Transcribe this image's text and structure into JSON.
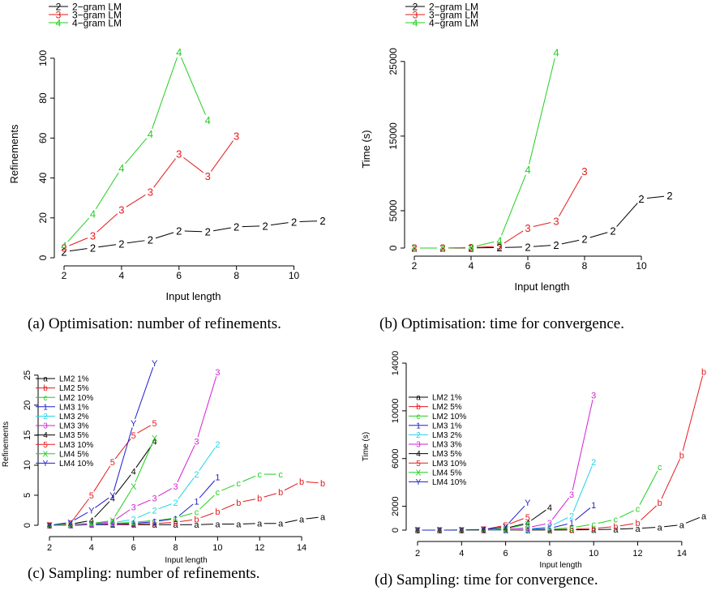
{
  "chart_data": [
    {
      "id": "a",
      "type": "line",
      "caption": "(a) Optimisation: number of refinements.",
      "xlabel": "Input length",
      "ylabel": "Refinements",
      "xlim": [
        2,
        11
      ],
      "ylim": [
        0,
        104
      ],
      "xticks": [
        2,
        4,
        6,
        8,
        10
      ],
      "yticks": [
        0,
        20,
        40,
        60,
        80,
        100
      ],
      "legend_position": "top-left",
      "series": [
        {
          "name": "2−gram LM",
          "marker": "2",
          "color": "#000000",
          "x": [
            2,
            3,
            4,
            5,
            6,
            7,
            8,
            9,
            10,
            11
          ],
          "y": [
            3,
            5,
            7,
            9,
            13.5,
            13,
            15.5,
            16,
            18,
            18.5
          ]
        },
        {
          "name": "3−gram LM",
          "marker": "3",
          "color": "#e41a1c",
          "x": [
            2,
            3,
            4,
            5,
            6,
            7,
            8
          ],
          "y": [
            5,
            11,
            24,
            33,
            52,
            41,
            61
          ]
        },
        {
          "name": "4−gram LM",
          "marker": "4",
          "color": "#1fcf1f",
          "x": [
            2,
            3,
            4,
            5,
            6,
            7
          ],
          "y": [
            6,
            22,
            45,
            62,
            103,
            69
          ]
        }
      ]
    },
    {
      "id": "b",
      "type": "line",
      "caption": "(b) Optimisation: time for convergence.",
      "xlabel": "Input length",
      "ylabel": "Time (s)",
      "xlim": [
        2,
        11
      ],
      "ylim": [
        0,
        26500
      ],
      "xticks": [
        2,
        4,
        6,
        8,
        10
      ],
      "yticks": [
        0,
        5000,
        15000,
        25000
      ],
      "legend_position": "top-left",
      "series": [
        {
          "name": "2−gram LM",
          "marker": "2",
          "color": "#000000",
          "x": [
            2,
            3,
            4,
            5,
            6,
            7,
            8,
            9,
            10,
            11
          ],
          "y": [
            0,
            0,
            20,
            60,
            150,
            400,
            1200,
            2300,
            6600,
            7000
          ]
        },
        {
          "name": "3−gram LM",
          "marker": "3",
          "color": "#e41a1c",
          "x": [
            2,
            3,
            4,
            5,
            6,
            7,
            8
          ],
          "y": [
            0,
            0,
            50,
            250,
            2700,
            3600,
            10300
          ]
        },
        {
          "name": "4−gram LM",
          "marker": "4",
          "color": "#1fcf1f",
          "x": [
            2,
            3,
            4,
            5,
            6,
            7
          ],
          "y": [
            0,
            0,
            100,
            1000,
            10500,
            26200
          ]
        }
      ]
    },
    {
      "id": "c",
      "type": "line",
      "caption": "(c) Sampling: number of refinements.",
      "xlabel": "Input length",
      "ylabel": "Refinements",
      "xlim": [
        2,
        15
      ],
      "ylim": [
        0,
        27
      ],
      "xticks": [
        2,
        4,
        6,
        8,
        10,
        12,
        14
      ],
      "yticks": [
        0,
        5,
        10,
        15,
        20,
        25
      ],
      "legend_position": "top-left",
      "series": [
        {
          "name": "LM2 1%",
          "marker": "a",
          "color": "#000000",
          "x": [
            2,
            3,
            4,
            5,
            6,
            7,
            8,
            9,
            10,
            11,
            12,
            13,
            14,
            15
          ],
          "y": [
            0,
            0,
            0.1,
            0.1,
            0.1,
            0.1,
            0.1,
            0.1,
            0.2,
            0.2,
            0.3,
            0.3,
            1,
            1.4
          ]
        },
        {
          "name": "LM2 5%",
          "marker": "b",
          "color": "#e41a1c",
          "x": [
            2,
            3,
            4,
            5,
            6,
            7,
            8,
            9,
            10,
            11,
            12,
            13,
            14,
            15
          ],
          "y": [
            0,
            0,
            0.1,
            0.1,
            0.2,
            0.3,
            0.5,
            1,
            2.3,
            3.8,
            4.5,
            5.5,
            7.3,
            7
          ]
        },
        {
          "name": "LM2 10%",
          "marker": "c",
          "color": "#1fcf1f",
          "x": [
            2,
            3,
            4,
            5,
            6,
            7,
            8,
            9,
            10,
            11,
            12,
            13
          ],
          "y": [
            0,
            0,
            0.2,
            0.3,
            0.5,
            0.8,
            1.2,
            2.2,
            5.5,
            7,
            8.5,
            8.5
          ]
        },
        {
          "name": "LM3 1%",
          "marker": "1",
          "color": "#1f1fcf",
          "x": [
            2,
            3,
            4,
            5,
            6,
            7,
            8,
            9,
            10
          ],
          "y": [
            0,
            0,
            0.1,
            0.2,
            0.3,
            0.6,
            1.1,
            4,
            8
          ]
        },
        {
          "name": "LM3 2%",
          "marker": "2",
          "color": "#22d3e6",
          "x": [
            2,
            3,
            4,
            5,
            6,
            7,
            8,
            9,
            10
          ],
          "y": [
            0,
            0,
            0.2,
            0.4,
            1,
            2.5,
            3.8,
            8.5,
            13.5
          ]
        },
        {
          "name": "LM3 3%",
          "marker": "3",
          "color": "#d31fd3",
          "x": [
            2,
            3,
            4,
            5,
            6,
            7,
            8,
            9,
            10
          ],
          "y": [
            0,
            0,
            0.2,
            0.6,
            3,
            4.5,
            6.5,
            14,
            25.5
          ]
        },
        {
          "name": "LM3 5%",
          "marker": "4",
          "color": "#000000",
          "x": [
            2,
            3,
            4,
            5,
            6,
            7
          ],
          "y": [
            0,
            0.2,
            0.8,
            4.5,
            9,
            14
          ]
        },
        {
          "name": "LM3 10%",
          "marker": "5",
          "color": "#e41a1c",
          "x": [
            2,
            3,
            4,
            5,
            6,
            7
          ],
          "y": [
            0,
            0.3,
            5,
            10.5,
            15,
            17
          ]
        },
        {
          "name": "LM4 5%",
          "marker": "X",
          "color": "#1fcf1f",
          "x": [
            2,
            3,
            4,
            5,
            6,
            7
          ],
          "y": [
            0,
            0.2,
            0.3,
            0.8,
            6.5,
            14.5
          ]
        },
        {
          "name": "LM4 10%",
          "marker": "Y",
          "color": "#1f1fcf",
          "x": [
            2,
            3,
            4,
            5,
            6,
            7
          ],
          "y": [
            0,
            0.5,
            2.5,
            5,
            17,
            27
          ]
        }
      ]
    },
    {
      "id": "d",
      "type": "line",
      "caption": "(d) Sampling: time for convergence.",
      "xlabel": "Input length",
      "ylabel": "Time (s)",
      "xlim": [
        2,
        15
      ],
      "ylim": [
        0,
        14000
      ],
      "xticks": [
        2,
        4,
        6,
        8,
        10,
        12,
        14
      ],
      "yticks": [
        0,
        2000,
        6000,
        10000,
        14000
      ],
      "legend_position": "top-left",
      "series": [
        {
          "name": "LM2 1%",
          "marker": "a",
          "color": "#000000",
          "x": [
            2,
            3,
            4,
            5,
            6,
            7,
            8,
            9,
            10,
            11,
            12,
            13,
            14,
            15
          ],
          "y": [
            0,
            0,
            0,
            0,
            0,
            5,
            10,
            20,
            40,
            80,
            150,
            250,
            450,
            1200
          ]
        },
        {
          "name": "LM2 5%",
          "marker": "b",
          "color": "#e41a1c",
          "x": [
            2,
            3,
            4,
            5,
            6,
            7,
            8,
            9,
            10,
            11,
            12,
            13,
            14,
            15
          ],
          "y": [
            0,
            0,
            0,
            0,
            5,
            20,
            40,
            80,
            150,
            300,
            600,
            2300,
            6300,
            13300
          ]
        },
        {
          "name": "LM2 10%",
          "marker": "c",
          "color": "#1fcf1f",
          "x": [
            2,
            3,
            4,
            5,
            6,
            7,
            8,
            9,
            10,
            11,
            12,
            13
          ],
          "y": [
            0,
            0,
            0,
            0,
            10,
            40,
            80,
            200,
            500,
            900,
            1800,
            5300
          ]
        },
        {
          "name": "LM3 1%",
          "marker": "1",
          "color": "#1f1fcf",
          "x": [
            2,
            3,
            4,
            5,
            6,
            7,
            8,
            9,
            10
          ],
          "y": [
            0,
            0,
            0,
            5,
            20,
            60,
            150,
            600,
            2100
          ]
        },
        {
          "name": "LM3 2%",
          "marker": "2",
          "color": "#22d3e6",
          "x": [
            2,
            3,
            4,
            5,
            6,
            7,
            8,
            9,
            10
          ],
          "y": [
            0,
            0,
            0,
            5,
            20,
            80,
            300,
            1200,
            5700
          ]
        },
        {
          "name": "LM3 3%",
          "marker": "3",
          "color": "#d31fd3",
          "x": [
            2,
            3,
            4,
            5,
            6,
            7,
            8,
            9,
            10
          ],
          "y": [
            0,
            0,
            0,
            10,
            50,
            200,
            600,
            3000,
            11300
          ]
        },
        {
          "name": "LM3 5%",
          "marker": "4",
          "color": "#000000",
          "x": [
            2,
            3,
            4,
            5,
            6,
            7,
            8
          ],
          "y": [
            0,
            0,
            5,
            20,
            150,
            600,
            1900
          ]
        },
        {
          "name": "LM3 10%",
          "marker": "5",
          "color": "#e41a1c",
          "x": [
            2,
            3,
            4,
            5,
            6,
            7
          ],
          "y": [
            0,
            0,
            10,
            50,
            400,
            1100
          ]
        },
        {
          "name": "LM4 5%",
          "marker": "X",
          "color": "#1fcf1f",
          "x": [
            2,
            3,
            4,
            5,
            6,
            7
          ],
          "y": [
            0,
            0,
            5,
            20,
            100,
            500
          ]
        },
        {
          "name": "LM4 10%",
          "marker": "Y",
          "color": "#1f1fcf",
          "x": [
            2,
            3,
            4,
            5,
            6,
            7
          ],
          "y": [
            0,
            0,
            10,
            50,
            300,
            2300
          ]
        }
      ]
    }
  ]
}
